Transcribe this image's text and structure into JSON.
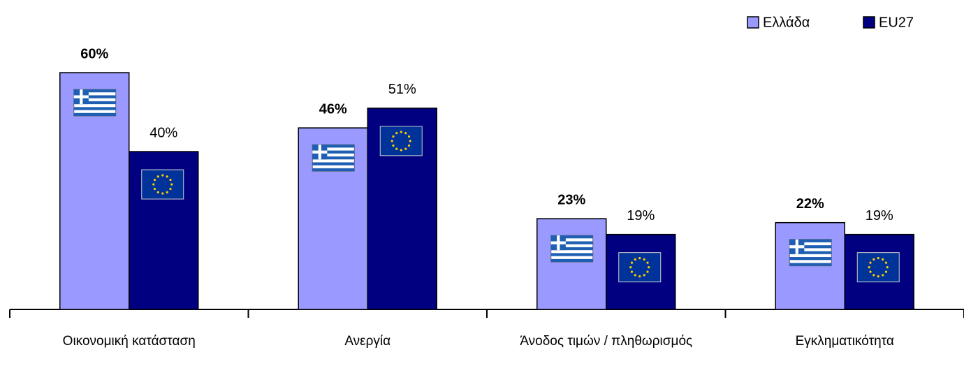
{
  "chart_data": {
    "type": "bar",
    "categories": [
      "Οικονομική κατάσταση",
      "Ανεργία",
      "Άνοδος τιμών / πληθωρισμός",
      "Εγκληματικότητα"
    ],
    "series": [
      {
        "name": "Ελλάδα",
        "color": "#9999ff",
        "values": [
          60,
          46,
          23,
          22
        ],
        "value_labels": [
          "60%",
          "46%",
          "23%",
          "22%"
        ]
      },
      {
        "name": "EU27",
        "color": "#000080",
        "values": [
          40,
          51,
          19,
          19
        ],
        "value_labels": [
          "40%",
          "51%",
          "19%",
          "19%"
        ]
      }
    ],
    "legend": "top-right"
  }
}
